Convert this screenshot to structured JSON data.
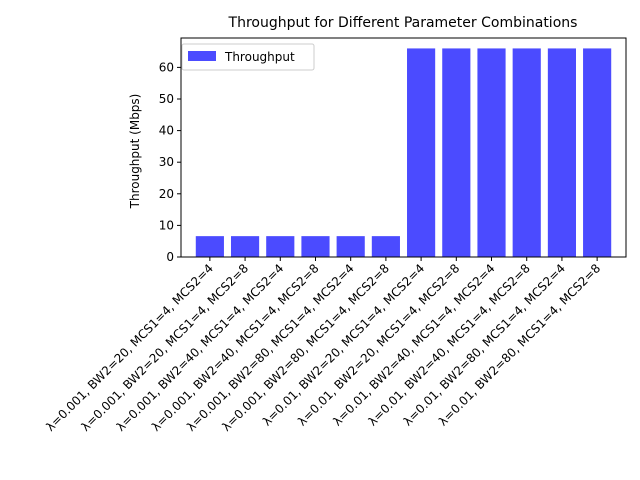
{
  "chart_data": {
    "type": "bar",
    "title": "Throughput for Different Parameter Combinations",
    "xlabel": "",
    "ylabel": "Throughput (Mbps)",
    "ylim": [
      0,
      69.3
    ],
    "yticks": [
      0,
      10,
      20,
      30,
      40,
      50,
      60
    ],
    "grid": false,
    "legend_position": "top-left",
    "categories": [
      "λ=0.001, BW2=20, MCS1=4, MCS2=4",
      "λ=0.001, BW2=20, MCS1=4, MCS2=8",
      "λ=0.001, BW2=40, MCS1=4, MCS2=4",
      "λ=0.001, BW2=40, MCS1=4, MCS2=8",
      "λ=0.001, BW2=80, MCS1=4, MCS2=4",
      "λ=0.001, BW2=80, MCS1=4, MCS2=8",
      "λ=0.01, BW2=20, MCS1=4, MCS2=4",
      "λ=0.01, BW2=20, MCS1=4, MCS2=8",
      "λ=0.01, BW2=40, MCS1=4, MCS2=4",
      "λ=0.01, BW2=40, MCS1=4, MCS2=8",
      "λ=0.01, BW2=80, MCS1=4, MCS2=4",
      "λ=0.01, BW2=80, MCS1=4, MCS2=8"
    ],
    "series": [
      {
        "name": "Throughput",
        "color": "#4b4bff",
        "values": [
          6.6,
          6.6,
          6.6,
          6.6,
          6.6,
          6.6,
          66.0,
          66.0,
          66.0,
          66.0,
          66.0,
          66.0
        ]
      }
    ]
  }
}
